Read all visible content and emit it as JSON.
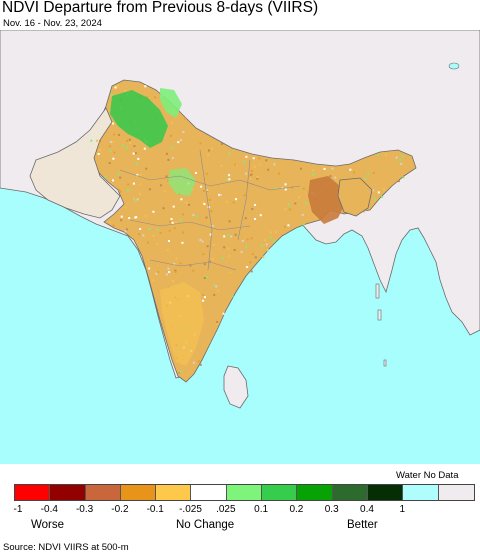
{
  "header": {
    "title": "NDVI Departure from Previous 8-days (VIIRS)",
    "date_range": "Nov. 16 - Nov. 23, 2024"
  },
  "map": {
    "region": "South Asia",
    "colors": {
      "ocean": "#a8fdfd",
      "no_data_land": "#efebef",
      "borders": "#6a6a6a",
      "worse_strong": "#c08a4a",
      "worse": "#e2a030",
      "worse_light": "#f3c150",
      "no_change": "#ffffff",
      "better_light": "#7dee7a",
      "better": "#32c84b",
      "better_strong": "#0aa40a"
    }
  },
  "legend": {
    "swatch_colors": [
      "#fe0000",
      "#930000",
      "#c9663c",
      "#e8941a",
      "#fec84b",
      "#ffffff",
      "#7ff47a",
      "#36cc4c",
      "#07a304",
      "#2d6a2d",
      "#052e05",
      "#b0fdfd",
      "#efebef"
    ],
    "tick_labels": [
      "-1",
      "-0.4",
      "-0.3",
      "-0.2",
      "-0.1",
      "-.025",
      ".025",
      "0.1",
      "0.2",
      "0.3",
      "0.4",
      "1"
    ],
    "water_nodata_label": "Water No Data",
    "worse_label": "Worse",
    "no_change_label": "No Change",
    "better_label": "Better"
  },
  "footer": {
    "source": "Source: NDVI VIIRS at 500-m"
  }
}
